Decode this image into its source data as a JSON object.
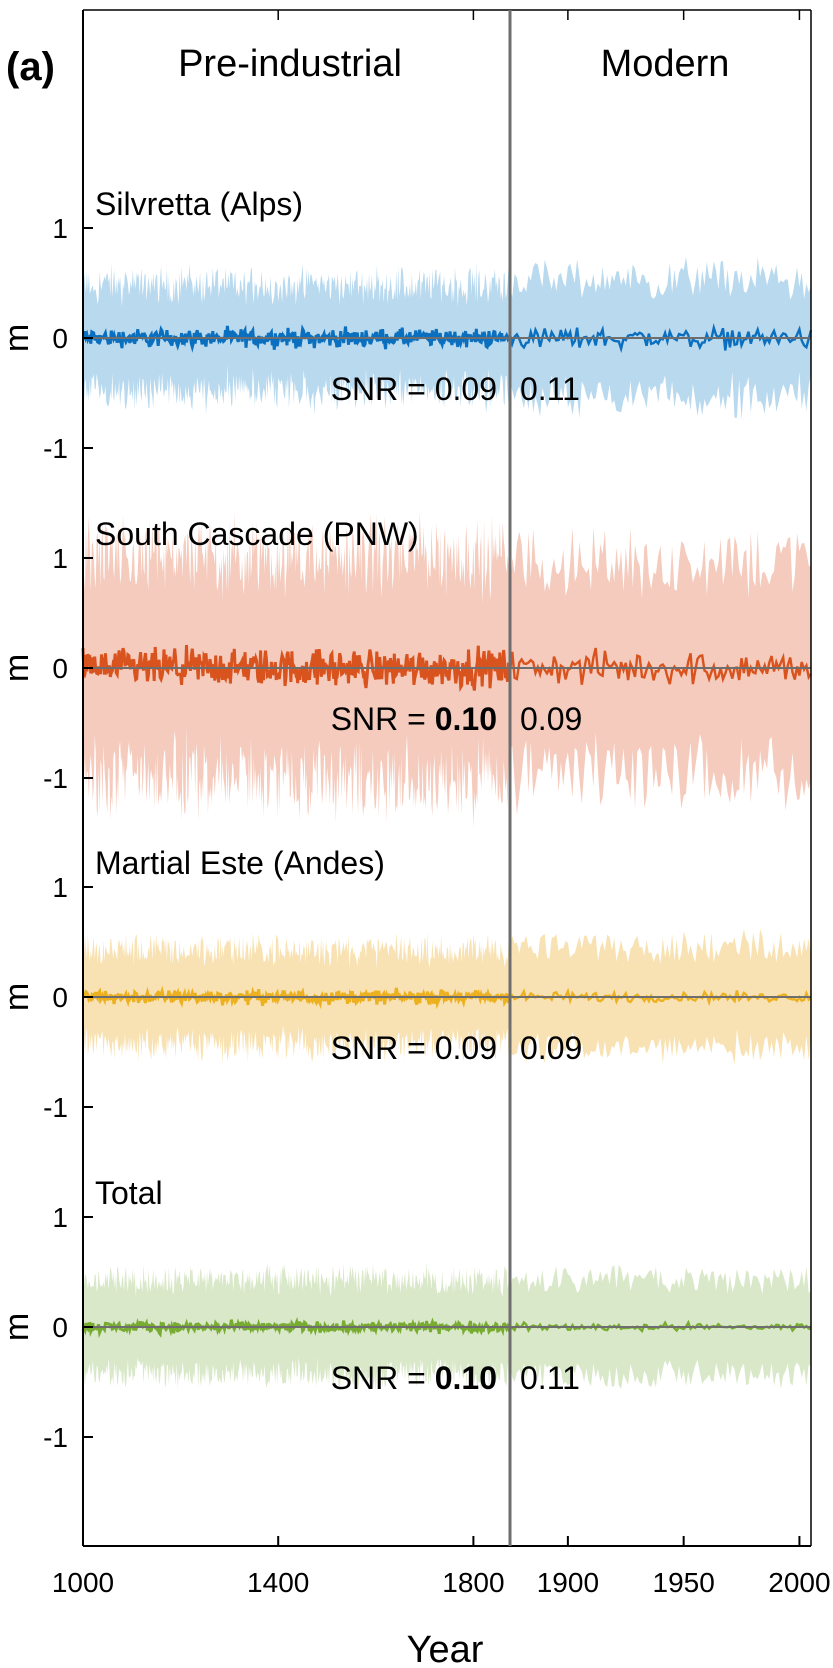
{
  "panel_label": "(a)",
  "period_labels": [
    "Pre-industrial",
    "Modern"
  ],
  "y_axis_label": "m",
  "x_axis_label": "Year",
  "colors": {
    "axis": "#000000",
    "divider": "#6e6e6e",
    "zero_line": "#6e6e6e"
  },
  "chart_data": {
    "type": "line",
    "xlabel": "Year",
    "ylabel": "m",
    "x_segments": [
      {
        "name": "Pre-industrial",
        "xlim": [
          1000,
          1875
        ],
        "ticks": [
          1000,
          1400,
          1800
        ]
      },
      {
        "name": "Modern",
        "xlim": [
          1875,
          2005
        ],
        "ticks": [
          1900,
          1950,
          2000
        ]
      }
    ],
    "ylim": [
      -1,
      1
    ],
    "yticks": [
      "1",
      "0",
      "-1"
    ],
    "grid": false,
    "series": [
      {
        "name": "Silvretta (Alps)",
        "color": "#0a6fbf",
        "band_color": "#b9d9ee",
        "snr_prefix": "SNR = ",
        "snr_pre": "0.09",
        "snr_modern": "0.11",
        "snr_pre_bold": false,
        "line_amp": 0.12,
        "band_amp": 0.62,
        "modern_line_amp": 0.14,
        "modern_band_amp": 0.68
      },
      {
        "name": "South Cascade (PNW)",
        "color": "#d9531e",
        "band_color": "#f5cbbd",
        "snr_prefix": "SNR = ",
        "snr_pre": "0.10",
        "snr_modern": "0.09",
        "snr_pre_bold": true,
        "line_amp": 0.25,
        "band_amp": 1.3,
        "modern_line_amp": 0.22,
        "modern_band_amp": 1.25
      },
      {
        "name": "Martial Este (Andes)",
        "color": "#edb120",
        "band_color": "#f8e2b3",
        "snr_prefix": "SNR = ",
        "snr_pre": "0.09",
        "snr_modern": "0.09",
        "snr_pre_bold": false,
        "line_amp": 0.09,
        "band_amp": 0.55,
        "modern_line_amp": 0.07,
        "modern_band_amp": 0.6
      },
      {
        "name": "Total",
        "color": "#77ac30",
        "band_color": "#d9e8c8",
        "snr_prefix": "SNR = ",
        "snr_pre": "0.10",
        "snr_modern": "0.11",
        "snr_pre_bold": true,
        "line_amp": 0.07,
        "band_amp": 0.55,
        "modern_line_amp": 0.05,
        "modern_band_amp": 0.55
      }
    ]
  }
}
